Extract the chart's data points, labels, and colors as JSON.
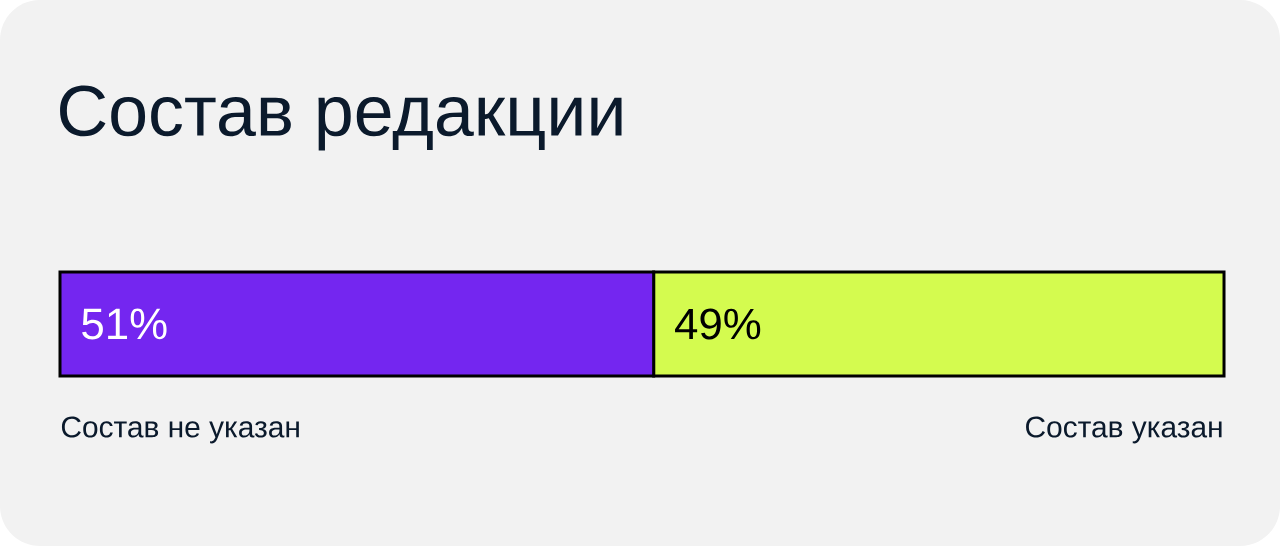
{
  "chart_data": {
    "type": "bar",
    "title": "Состав редакции",
    "orientation": "horizontal",
    "stacked": true,
    "categories": [
      null
    ],
    "series": [
      {
        "name": "Состав не указан",
        "color": "#7426f0",
        "values": [
          51
        ],
        "value_labels": [
          "51%"
        ]
      },
      {
        "name": "Состав указан",
        "color": "#d4fb4f",
        "values": [
          49
        ],
        "value_labels": [
          "49%"
        ]
      }
    ]
  }
}
